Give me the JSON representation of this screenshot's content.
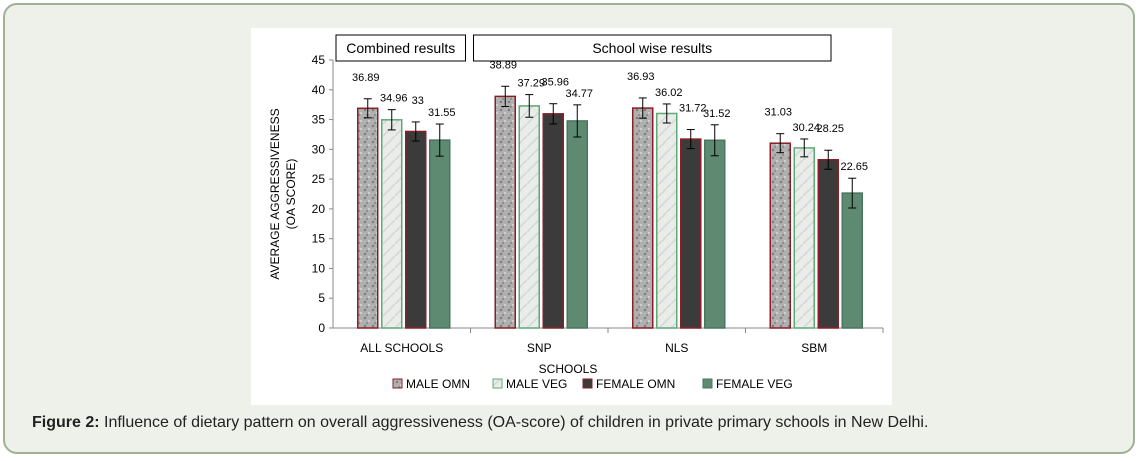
{
  "figure": {
    "caption_label": "Figure 2:",
    "caption_text": " Influence of dietary pattern on overall aggressiveness (OA-score) of children in private primary schools in New Delhi."
  },
  "chart_data": {
    "type": "bar",
    "categories": [
      "ALL SCHOOLS",
      "SNP",
      "NLS",
      "SBM"
    ],
    "series": [
      {
        "name": "MALE OMN",
        "values": [
          36.89,
          38.89,
          36.93,
          31.03
        ],
        "errors": [
          1.6,
          1.7,
          1.7,
          1.6
        ],
        "color": "#b5b5b5",
        "stroke": "#8b1e24"
      },
      {
        "name": "MALE VEG",
        "values": [
          34.96,
          37.29,
          36.02,
          30.24
        ],
        "errors": [
          1.7,
          1.9,
          1.6,
          1.5
        ],
        "color": "#eaf4ec",
        "stroke": "#5fa878"
      },
      {
        "name": "FEMALE OMN",
        "values": [
          33,
          35.96,
          31.72,
          28.25
        ],
        "errors": [
          1.6,
          1.7,
          1.6,
          1.6
        ],
        "color": "#3b3b3b",
        "stroke": "#8b1e24"
      },
      {
        "name": "FEMALE VEG",
        "values": [
          31.55,
          34.77,
          31.52,
          22.65
        ],
        "errors": [
          2.7,
          2.7,
          2.6,
          2.5
        ],
        "color": "#5e8a72",
        "stroke": "#4a7560"
      }
    ],
    "data_labels": [
      [
        "36.89",
        "38.89",
        "36.93",
        "31.03"
      ],
      [
        "34.96",
        "37.29",
        "36.02",
        "30.24"
      ],
      [
        "33",
        "35.96",
        "31.72",
        "28.25"
      ],
      [
        "31.55",
        "34.77",
        "31.52",
        "22.65"
      ]
    ],
    "xlabel": "SCHOOLS",
    "ylabel_line1": "AVERAGE AGGRESSIVENESS",
    "ylabel_line2": "(OA SCORE)",
    "ylim": [
      0,
      45
    ],
    "yticks": [
      0,
      5,
      10,
      15,
      20,
      25,
      30,
      35,
      40,
      45
    ],
    "grid": false,
    "legend_position": "bottom",
    "group_headers": [
      {
        "label": "Combined results",
        "covers": [
          "ALL SCHOOLS"
        ]
      },
      {
        "label": "School wise results",
        "covers": [
          "SNP",
          "NLS",
          "SBM"
        ]
      }
    ]
  }
}
